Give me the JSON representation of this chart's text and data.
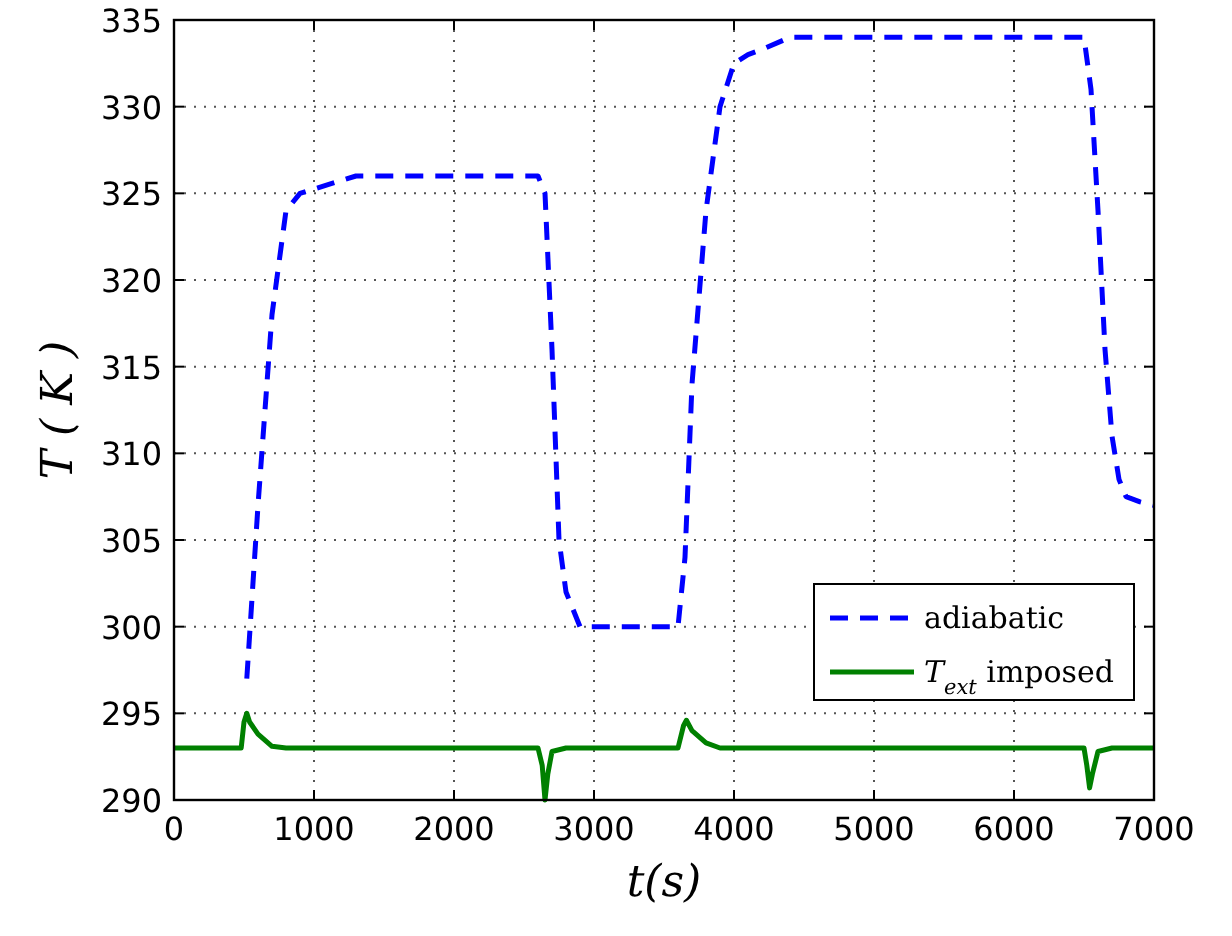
{
  "chart_data": {
    "type": "line",
    "xlabel": "t(s)",
    "ylabel": "T ( K )",
    "xlim": [
      0,
      7000
    ],
    "xticks": [
      0,
      1000,
      2000,
      3000,
      4000,
      5000,
      6000,
      7000
    ],
    "ylim": [
      290,
      335
    ],
    "yticks": [
      290,
      295,
      300,
      305,
      310,
      315,
      320,
      325,
      330,
      335
    ],
    "grid": true,
    "legend": "bottom right",
    "marker": "none",
    "series": [
      {
        "name": "adiabatic",
        "color": "#0000ff",
        "line_style": "dashed",
        "x": [
          520,
          600,
          700,
          800,
          900,
          1100,
          1300,
          2000,
          2600,
          2650,
          2700,
          2750,
          2800,
          2900,
          3000,
          3400,
          3600,
          3650,
          3700,
          3800,
          3900,
          4000,
          4100,
          4200,
          4400,
          4600,
          5500,
          6500,
          6550,
          6600,
          6650,
          6700,
          6750,
          6800,
          6900,
          7000
        ],
        "values": [
          297,
          307,
          318,
          324,
          325,
          325.5,
          326,
          326,
          326,
          325,
          316,
          305,
          302,
          300,
          300,
          300,
          300,
          304,
          314,
          324,
          330,
          332.5,
          333,
          333.3,
          334,
          334,
          334,
          334,
          331,
          324,
          316,
          311,
          308.5,
          307.5,
          307.2,
          307
        ]
      },
      {
        "name": "T$_{ext}$ imposed",
        "color": "#008000",
        "line_style": "solid",
        "x": [
          0,
          480,
          500,
          520,
          540,
          600,
          700,
          800,
          2600,
          2630,
          2650,
          2670,
          2700,
          2800,
          3600,
          3640,
          3660,
          3700,
          3800,
          3900,
          6500,
          6520,
          6540,
          6560,
          6600,
          6700,
          7000
        ],
        "values": [
          293,
          293,
          294.5,
          295,
          294.5,
          293.8,
          293.1,
          293,
          293,
          292,
          290,
          291.5,
          292.8,
          293,
          293,
          294.3,
          294.6,
          294,
          293.3,
          293,
          293,
          292,
          290.7,
          291.5,
          292.8,
          293,
          293
        ]
      }
    ]
  }
}
